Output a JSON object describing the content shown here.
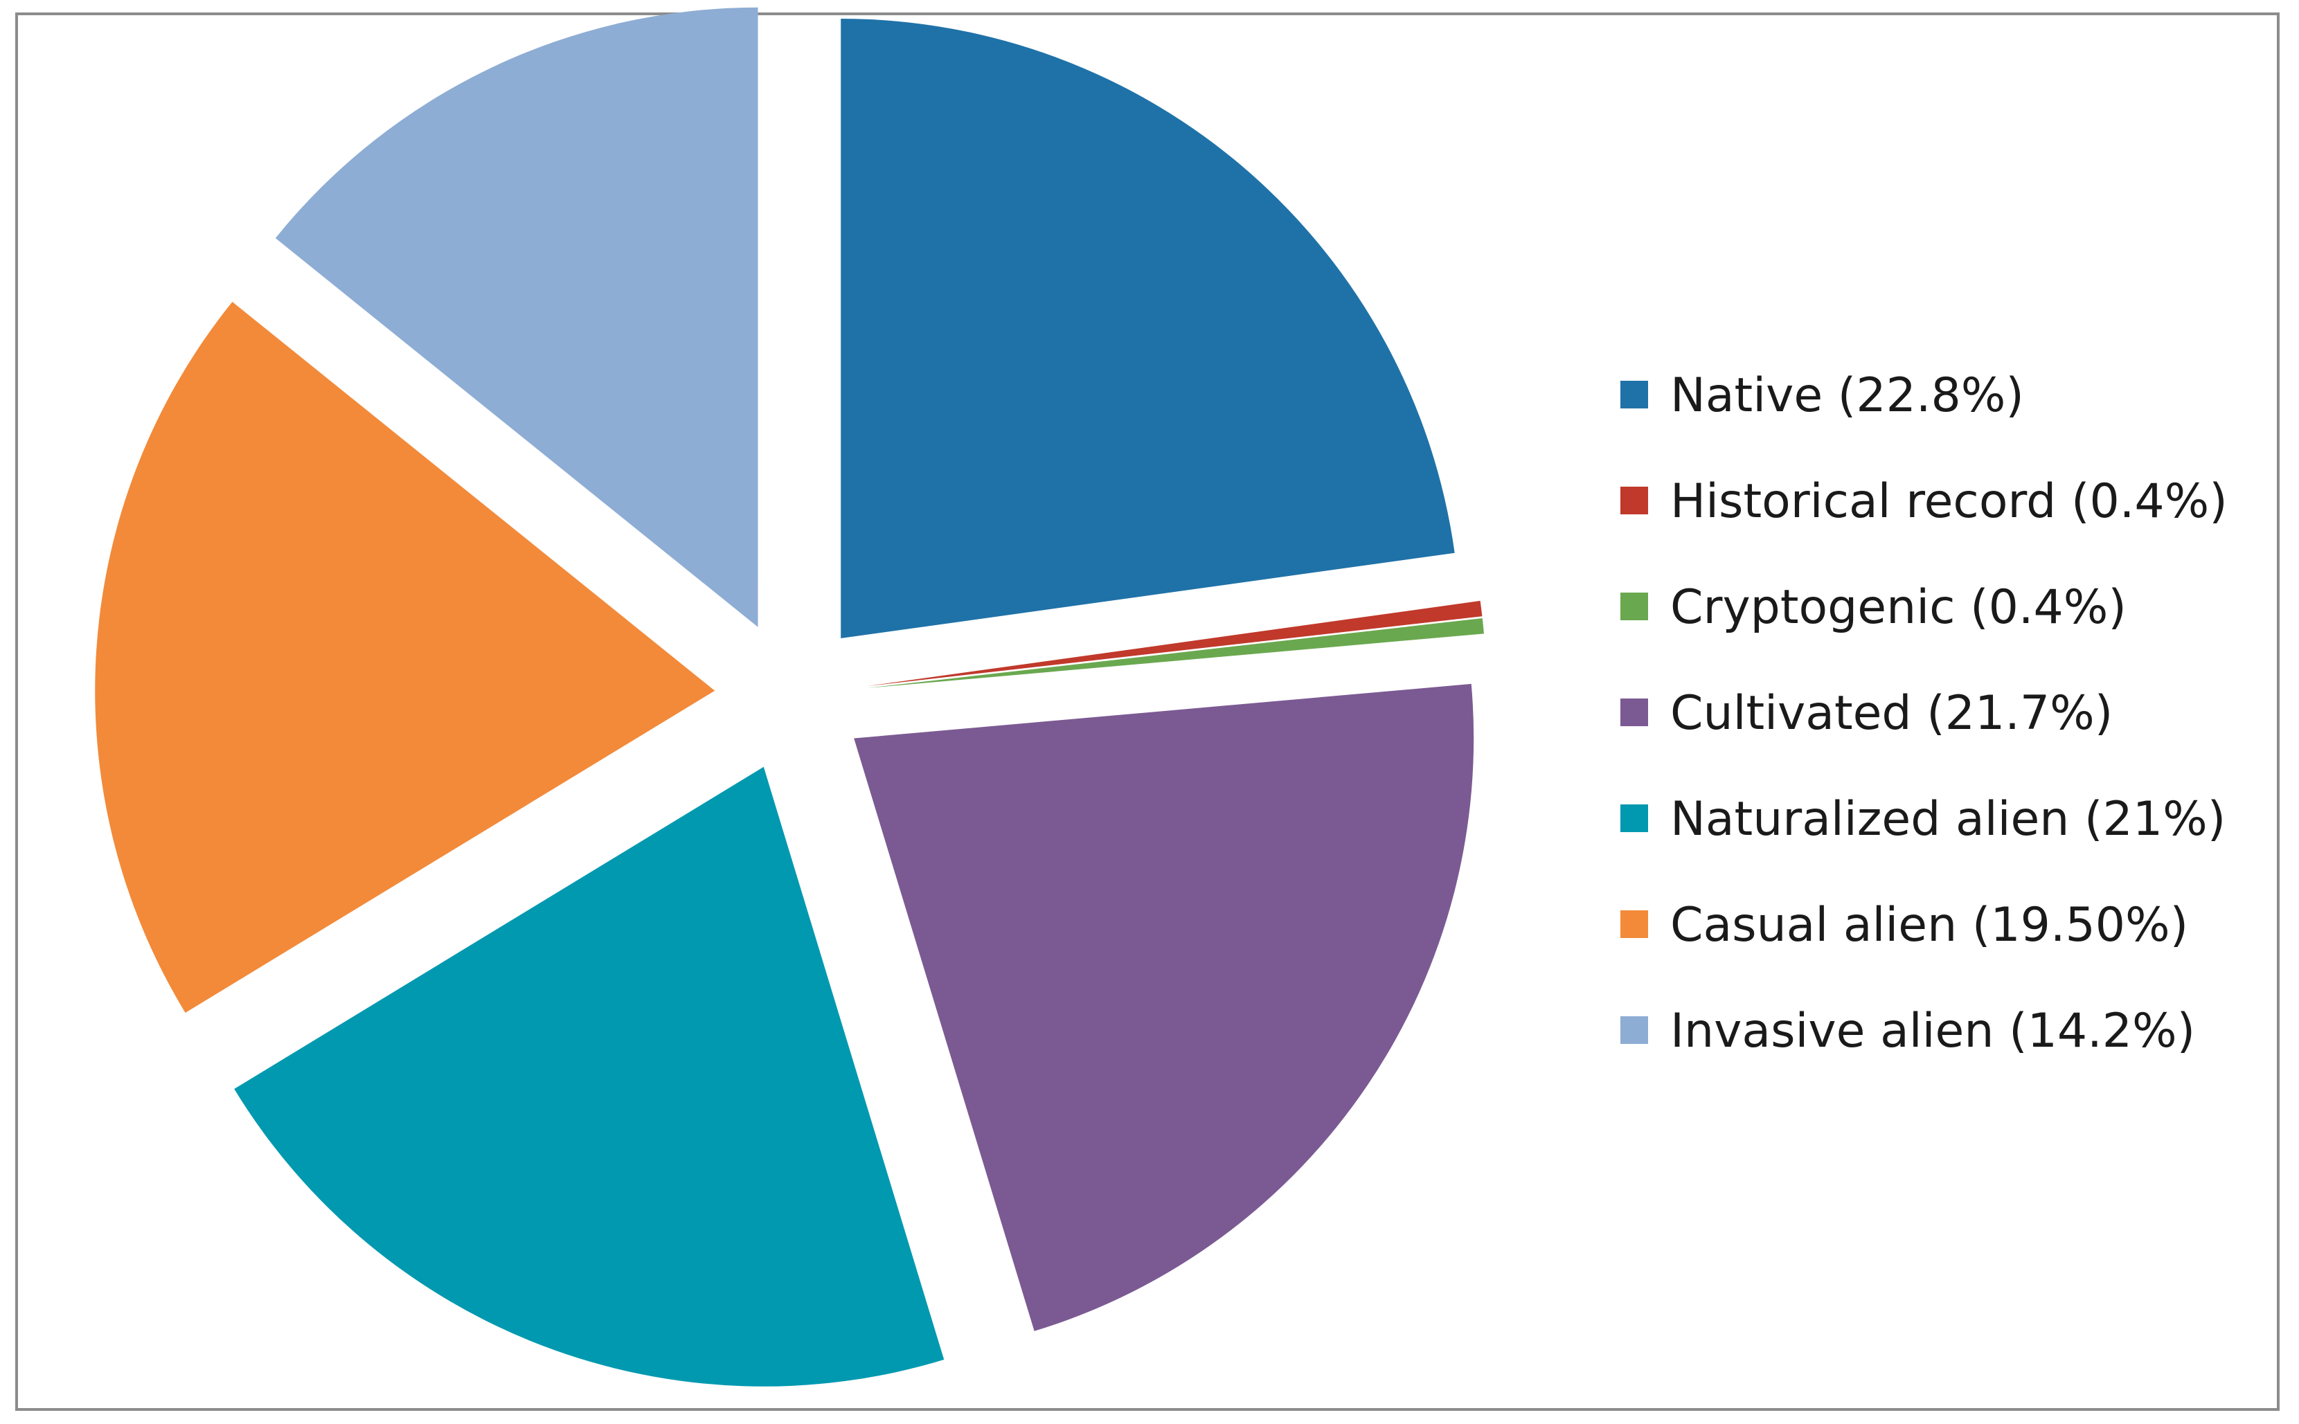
{
  "chart_data": {
    "type": "pie",
    "exploded": true,
    "start_angle_deg": 0,
    "direction": "clockwise",
    "legend_position": "right",
    "title": "",
    "categories": [
      "Native (22.8%)",
      "Historical record (0.4%)",
      "Cryptogenic (0.4%)",
      "Cultivated (21.7%)",
      "Naturalized alien (21%)",
      "Casual alien (19.50%)",
      "Invasive alien (14.2%)"
    ],
    "values": [
      22.8,
      0.4,
      0.4,
      21.7,
      21.0,
      19.5,
      14.2
    ],
    "colors": [
      "#1f72a8",
      "#c0392b",
      "#6aa84f",
      "#7b5a93",
      "#0099b0",
      "#f28a3a",
      "#8eadd4"
    ]
  }
}
